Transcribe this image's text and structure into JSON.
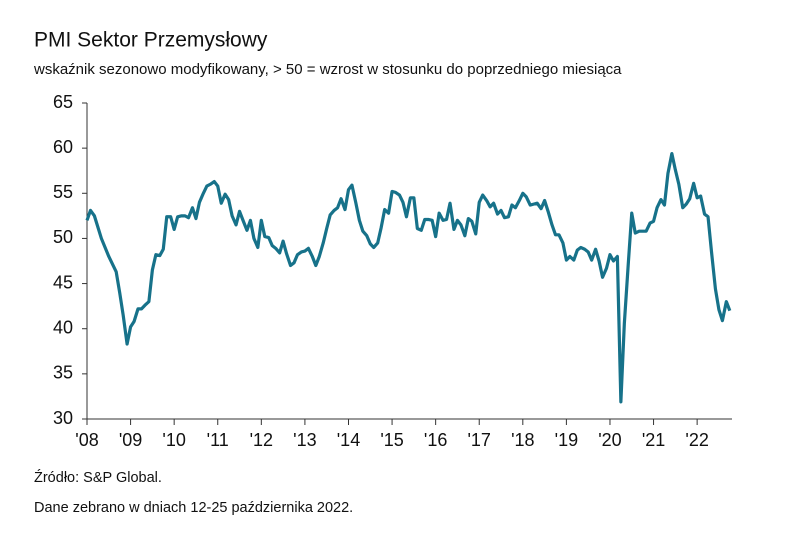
{
  "chart_data": {
    "type": "line",
    "title": "PMI Sektor Przemysłowy",
    "subtitle": "wskaźnik sezonowo modyfikowany, > 50 = wzrost w stosunku do poprzedniego miesiąca",
    "source": "Źródło: S&P Global.",
    "note": "Dane zebrano w dniach 12-25 października 2022.",
    "x": [
      2008.0,
      2008.08,
      2008.17,
      2008.33,
      2008.5,
      2008.67,
      2008.75,
      2008.83,
      2008.92,
      2009.0,
      2009.08,
      2009.17,
      2009.25,
      2009.33,
      2009.42,
      2009.5,
      2009.58,
      2009.67,
      2009.75,
      2009.83,
      2009.92,
      2010.0,
      2010.08,
      2010.17,
      2010.25,
      2010.33,
      2010.42,
      2010.5,
      2010.58,
      2010.67,
      2010.75,
      2010.83,
      2010.92,
      2011.0,
      2011.08,
      2011.17,
      2011.25,
      2011.33,
      2011.42,
      2011.5,
      2011.58,
      2011.67,
      2011.75,
      2011.83,
      2011.92,
      2012.0,
      2012.08,
      2012.17,
      2012.25,
      2012.33,
      2012.42,
      2012.5,
      2012.58,
      2012.67,
      2012.75,
      2012.83,
      2012.92,
      2013.0,
      2013.08,
      2013.17,
      2013.25,
      2013.33,
      2013.42,
      2013.5,
      2013.58,
      2013.67,
      2013.75,
      2013.83,
      2013.92,
      2014.0,
      2014.08,
      2014.17,
      2014.25,
      2014.33,
      2014.42,
      2014.5,
      2014.58,
      2014.67,
      2014.75,
      2014.83,
      2014.92,
      2015.0,
      2015.08,
      2015.17,
      2015.25,
      2015.33,
      2015.42,
      2015.5,
      2015.58,
      2015.67,
      2015.75,
      2015.83,
      2015.92,
      2016.0,
      2016.08,
      2016.17,
      2016.25,
      2016.33,
      2016.42,
      2016.5,
      2016.58,
      2016.67,
      2016.75,
      2016.83,
      2016.92,
      2017.0,
      2017.08,
      2017.17,
      2017.25,
      2017.33,
      2017.42,
      2017.5,
      2017.58,
      2017.67,
      2017.75,
      2017.83,
      2017.92,
      2018.0,
      2018.08,
      2018.17,
      2018.25,
      2018.33,
      2018.42,
      2018.5,
      2018.58,
      2018.67,
      2018.75,
      2018.83,
      2018.92,
      2019.0,
      2019.08,
      2019.17,
      2019.25,
      2019.33,
      2019.42,
      2019.5,
      2019.58,
      2019.67,
      2019.75,
      2019.83,
      2019.92,
      2020.0,
      2020.08,
      2020.17,
      2020.25,
      2020.33,
      2020.42,
      2020.5,
      2020.58,
      2020.67,
      2020.75,
      2020.83,
      2020.92,
      2021.0,
      2021.08,
      2021.17,
      2021.25,
      2021.33,
      2021.42,
      2021.5,
      2021.58,
      2021.67,
      2021.75,
      2021.83,
      2021.92,
      2022.0,
      2022.08,
      2022.17,
      2022.25,
      2022.33,
      2022.42,
      2022.5,
      2022.58,
      2022.67,
      2022.75
    ],
    "series": [
      {
        "name": "PMI",
        "color": "#17728a",
        "values": [
          52.0,
          53.1,
          52.5,
          50.0,
          48.0,
          46.3,
          44.0,
          41.5,
          38.3,
          40.2,
          40.8,
          42.2,
          42.2,
          42.6,
          43.0,
          46.5,
          48.2,
          48.1,
          48.8,
          52.4,
          52.4,
          51.0,
          52.4,
          52.5,
          52.5,
          52.3,
          53.4,
          52.2,
          54.0,
          55.0,
          55.8,
          56.0,
          56.3,
          55.8,
          53.9,
          54.9,
          54.3,
          52.5,
          51.5,
          53.0,
          52.0,
          50.9,
          52.0,
          50.0,
          49.0,
          52.0,
          50.2,
          50.1,
          49.2,
          48.9,
          48.4,
          49.7,
          48.3,
          47.0,
          47.3,
          48.2,
          48.5,
          48.6,
          48.9,
          48.0,
          47.0,
          48.0,
          49.5,
          51.1,
          52.6,
          53.1,
          53.4,
          54.4,
          53.2,
          55.4,
          55.9,
          53.9,
          52.0,
          50.8,
          50.3,
          49.4,
          49.0,
          49.5,
          51.2,
          53.2,
          52.8,
          55.2,
          55.1,
          54.8,
          54.0,
          52.4,
          54.5,
          54.5,
          51.1,
          50.9,
          52.1,
          52.1,
          52.0,
          50.2,
          52.8,
          52.0,
          52.1,
          53.9,
          51.0,
          52.0,
          51.5,
          50.3,
          52.2,
          51.9,
          50.5,
          54.0,
          54.8,
          54.2,
          53.5,
          53.9,
          52.7,
          53.1,
          52.3,
          52.4,
          53.7,
          53.4,
          54.2,
          55.0,
          54.6,
          53.7,
          53.8,
          53.9,
          53.3,
          54.2,
          53.0,
          51.5,
          50.4,
          50.4,
          49.5,
          47.6,
          48.0,
          47.6,
          48.7,
          49.0,
          48.8,
          48.5,
          47.6,
          48.8,
          47.5,
          45.7,
          46.7,
          48.2,
          47.5,
          48.0,
          31.9,
          40.6,
          47.2,
          52.8,
          50.6,
          50.8,
          50.8,
          50.8,
          51.7,
          51.9,
          53.4,
          54.3,
          53.7,
          57.2,
          59.4,
          57.6,
          56.0,
          53.4,
          53.8,
          54.4,
          56.1,
          54.5,
          54.7,
          52.7,
          52.4,
          48.5,
          44.4,
          42.1,
          40.9,
          43.0,
          42.0
        ]
      }
    ],
    "xlim": [
      2008,
      2022.8
    ],
    "xticks": [
      {
        "value": 2008,
        "label": "'08"
      },
      {
        "value": 2009,
        "label": "'09"
      },
      {
        "value": 2010,
        "label": "'10"
      },
      {
        "value": 2011,
        "label": "'11"
      },
      {
        "value": 2012,
        "label": "'12"
      },
      {
        "value": 2013,
        "label": "'13"
      },
      {
        "value": 2014,
        "label": "'14"
      },
      {
        "value": 2015,
        "label": "'15"
      },
      {
        "value": 2016,
        "label": "'16"
      },
      {
        "value": 2017,
        "label": "'17"
      },
      {
        "value": 2018,
        "label": "'18"
      },
      {
        "value": 2019,
        "label": "'19"
      },
      {
        "value": 2020,
        "label": "'20"
      },
      {
        "value": 2021,
        "label": "'21"
      },
      {
        "value": 2022,
        "label": "'22"
      }
    ],
    "ylim": [
      30,
      65
    ],
    "yticks": [
      30,
      35,
      40,
      45,
      50,
      55,
      60,
      65
    ],
    "grid": false
  }
}
